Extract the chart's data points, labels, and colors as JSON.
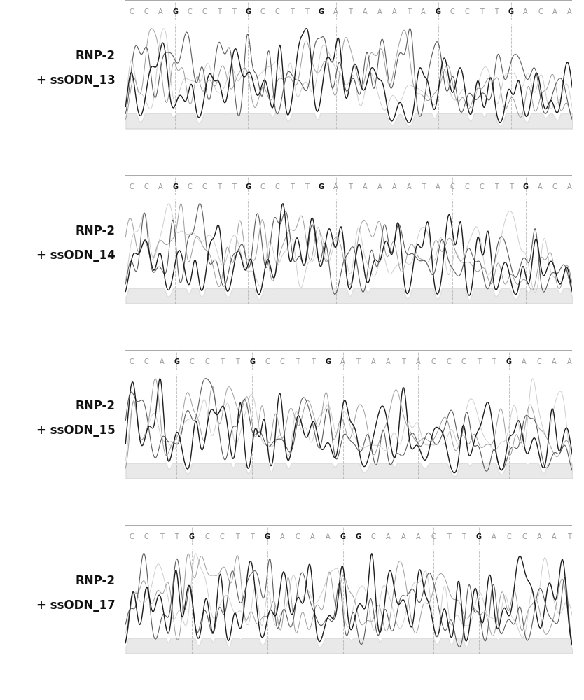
{
  "panels": [
    {
      "label_line1": "RNP-2",
      "label_line2": "+ ssODN_13",
      "seq_chars": [
        "C",
        "C",
        "A",
        "G",
        "C",
        "C",
        "T",
        "T",
        "G",
        "C",
        "C",
        "T",
        "T",
        "G",
        "A",
        "T",
        "A",
        "A",
        "A",
        "T",
        "A",
        "G",
        "C",
        "C",
        "T",
        "T",
        "G",
        "A",
        "C",
        "A",
        "A"
      ],
      "bold_indices": [
        3,
        8,
        13,
        21,
        26
      ],
      "dash_indices": [
        3,
        8,
        14,
        21,
        26
      ]
    },
    {
      "label_line1": "RNP-2",
      "label_line2": "+ ssODN_14",
      "seq_chars": [
        "C",
        "C",
        "A",
        "G",
        "C",
        "C",
        "T",
        "T",
        "G",
        "C",
        "C",
        "T",
        "T",
        "G",
        "A",
        "T",
        "A",
        "A",
        "A",
        "A",
        "T",
        "A",
        "C",
        "C",
        "C",
        "T",
        "T",
        "G",
        "A",
        "C",
        "A"
      ],
      "bold_indices": [
        3,
        8,
        13,
        27
      ],
      "dash_indices": [
        3,
        8,
        14,
        22,
        27
      ]
    },
    {
      "label_line1": "RNP-2",
      "label_line2": "+ ssODN_15",
      "seq_chars": [
        "C",
        "C",
        "A",
        "G",
        "C",
        "C",
        "T",
        "T",
        "G",
        "C",
        "C",
        "T",
        "T",
        "G",
        "A",
        "T",
        "A",
        "A",
        "T",
        "A",
        "C",
        "C",
        "C",
        "T",
        "T",
        "G",
        "A",
        "C",
        "A",
        "A"
      ],
      "bold_indices": [
        3,
        8,
        13,
        25
      ],
      "dash_indices": [
        3,
        8,
        14,
        19,
        25
      ]
    },
    {
      "label_line1": "RNP-2",
      "label_line2": "+ ssODN_17",
      "seq_chars": [
        "C",
        "C",
        "T",
        "T",
        "G",
        "C",
        "C",
        "T",
        "T",
        "G",
        "A",
        "C",
        "A",
        "A",
        "G",
        "G",
        "C",
        "A",
        "A",
        "A",
        "C",
        "T",
        "T",
        "G",
        "A",
        "C",
        "C",
        "A",
        "A",
        "T"
      ],
      "bold_indices": [
        4,
        9,
        14,
        15,
        23
      ],
      "dash_indices": [
        4,
        9,
        14,
        20,
        23
      ]
    }
  ],
  "background_color": "#ffffff",
  "label_fontsize": 12,
  "seq_fontsize": 7,
  "dashed_line_color": "#c0c0c0",
  "seq_bold_color": "#111111",
  "seq_normal_color": "#999999",
  "border_color": "#aaaaaa",
  "trace_colors_dark_to_light": [
    "#111111",
    "#555555",
    "#999999",
    "#cccccc"
  ],
  "trace_linewidths": [
    1.0,
    0.8,
    0.7,
    0.7
  ]
}
